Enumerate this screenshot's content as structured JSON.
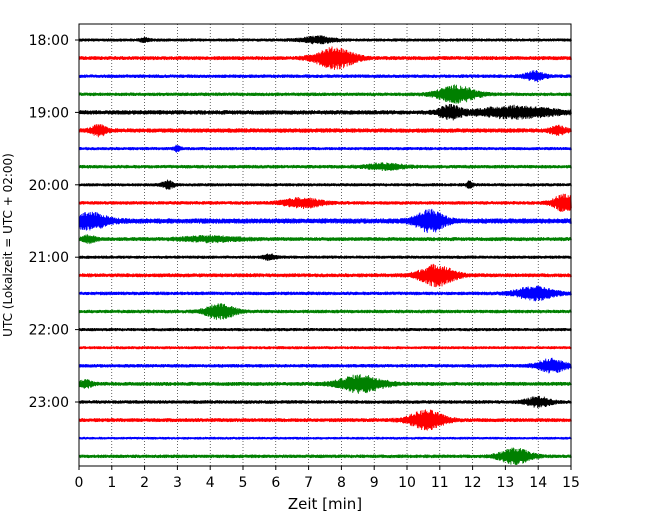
{
  "chart_data": {
    "type": "line",
    "title": "",
    "xlabel": "Zeit  [min]",
    "ylabel": "UTC (Lokalzeit = UTC + 02:00)",
    "xlim": [
      0,
      15
    ],
    "x_ticks": [
      "0",
      "1",
      "2",
      "3",
      "4",
      "5",
      "6",
      "7",
      "8",
      "9",
      "10",
      "11",
      "12",
      "13",
      "14",
      "15"
    ],
    "y_ticks": [
      "18:00",
      "19:00",
      "20:00",
      "21:00",
      "22:00",
      "23:00"
    ],
    "grid": "vertical dotted lines at each minute",
    "trace_color_cycle": [
      "#000000",
      "#ff0000",
      "#0000ff",
      "#008000"
    ],
    "traces": [
      {
        "start": "18:00",
        "color": "#000000",
        "base_amp": 0.18,
        "events": [
          {
            "t": 7.3,
            "amp": 0.35,
            "w": 0.5
          },
          {
            "t": 2.0,
            "amp": 0.2,
            "w": 0.15
          }
        ]
      },
      {
        "start": "18:15",
        "color": "#ff0000",
        "base_amp": 0.22,
        "events": [
          {
            "t": 7.8,
            "amp": 1.1,
            "w": 0.6
          }
        ]
      },
      {
        "start": "18:30",
        "color": "#0000ff",
        "base_amp": 0.2,
        "events": [
          {
            "t": 13.9,
            "amp": 0.5,
            "w": 0.3
          }
        ]
      },
      {
        "start": "18:45",
        "color": "#008000",
        "base_amp": 0.2,
        "events": [
          {
            "t": 11.5,
            "amp": 0.9,
            "w": 0.6
          }
        ]
      },
      {
        "start": "19:00",
        "color": "#000000",
        "base_amp": 0.25,
        "events": [
          {
            "t": 11.3,
            "amp": 0.7,
            "w": 0.35
          },
          {
            "t": 13.3,
            "amp": 0.6,
            "w": 1.2
          }
        ]
      },
      {
        "start": "19:15",
        "color": "#ff0000",
        "base_amp": 0.25,
        "events": [
          {
            "t": 0.6,
            "amp": 0.5,
            "w": 0.25
          },
          {
            "t": 14.6,
            "amp": 0.4,
            "w": 0.25
          }
        ]
      },
      {
        "start": "19:30",
        "color": "#0000ff",
        "base_amp": 0.18,
        "events": [
          {
            "t": 3.0,
            "amp": 0.35,
            "w": 0.1
          }
        ]
      },
      {
        "start": "19:45",
        "color": "#008000",
        "base_amp": 0.2,
        "events": [
          {
            "t": 9.3,
            "amp": 0.3,
            "w": 0.6
          }
        ]
      },
      {
        "start": "20:00",
        "color": "#000000",
        "base_amp": 0.18,
        "events": [
          {
            "t": 2.7,
            "amp": 0.4,
            "w": 0.2
          },
          {
            "t": 11.9,
            "amp": 0.35,
            "w": 0.1
          }
        ]
      },
      {
        "start": "20:15",
        "color": "#ff0000",
        "base_amp": 0.2,
        "events": [
          {
            "t": 6.8,
            "amp": 0.5,
            "w": 0.6
          },
          {
            "t": 14.8,
            "amp": 0.9,
            "w": 0.35
          }
        ]
      },
      {
        "start": "20:30",
        "color": "#0000ff",
        "base_amp": 0.3,
        "events": [
          {
            "t": 0.3,
            "amp": 0.8,
            "w": 0.6
          },
          {
            "t": 10.7,
            "amp": 1.1,
            "w": 0.45
          }
        ]
      },
      {
        "start": "20:45",
        "color": "#008000",
        "base_amp": 0.22,
        "events": [
          {
            "t": 0.3,
            "amp": 0.35,
            "w": 0.2
          },
          {
            "t": 4.0,
            "amp": 0.25,
            "w": 0.9
          }
        ]
      },
      {
        "start": "21:00",
        "color": "#000000",
        "base_amp": 0.18,
        "events": [
          {
            "t": 5.8,
            "amp": 0.3,
            "w": 0.2
          }
        ]
      },
      {
        "start": "21:15",
        "color": "#ff0000",
        "base_amp": 0.22,
        "events": [
          {
            "t": 10.9,
            "amp": 1.1,
            "w": 0.55
          }
        ]
      },
      {
        "start": "21:30",
        "color": "#0000ff",
        "base_amp": 0.2,
        "events": [
          {
            "t": 13.9,
            "amp": 0.7,
            "w": 0.6
          }
        ]
      },
      {
        "start": "21:45",
        "color": "#008000",
        "base_amp": 0.2,
        "events": [
          {
            "t": 4.3,
            "amp": 0.8,
            "w": 0.45
          }
        ]
      },
      {
        "start": "22:00",
        "color": "#000000",
        "base_amp": 0.18,
        "events": []
      },
      {
        "start": "22:15",
        "color": "#ff0000",
        "base_amp": 0.17,
        "events": []
      },
      {
        "start": "22:30",
        "color": "#0000ff",
        "base_amp": 0.2,
        "events": [
          {
            "t": 14.4,
            "amp": 0.7,
            "w": 0.45
          }
        ]
      },
      {
        "start": "22:45",
        "color": "#008000",
        "base_amp": 0.22,
        "events": [
          {
            "t": 0.2,
            "amp": 0.4,
            "w": 0.2
          },
          {
            "t": 8.6,
            "amp": 0.9,
            "w": 0.7
          }
        ]
      },
      {
        "start": "23:00",
        "color": "#000000",
        "base_amp": 0.2,
        "events": [
          {
            "t": 14.0,
            "amp": 0.5,
            "w": 0.4
          }
        ]
      },
      {
        "start": "23:15",
        "color": "#ff0000",
        "base_amp": 0.22,
        "events": [
          {
            "t": 10.6,
            "amp": 1.0,
            "w": 0.55
          }
        ]
      },
      {
        "start": "23:30",
        "color": "#0000ff",
        "base_amp": 0.15,
        "events": []
      },
      {
        "start": "23:45",
        "color": "#008000",
        "base_amp": 0.2,
        "events": [
          {
            "t": 13.3,
            "amp": 0.8,
            "w": 0.5
          }
        ]
      }
    ]
  }
}
